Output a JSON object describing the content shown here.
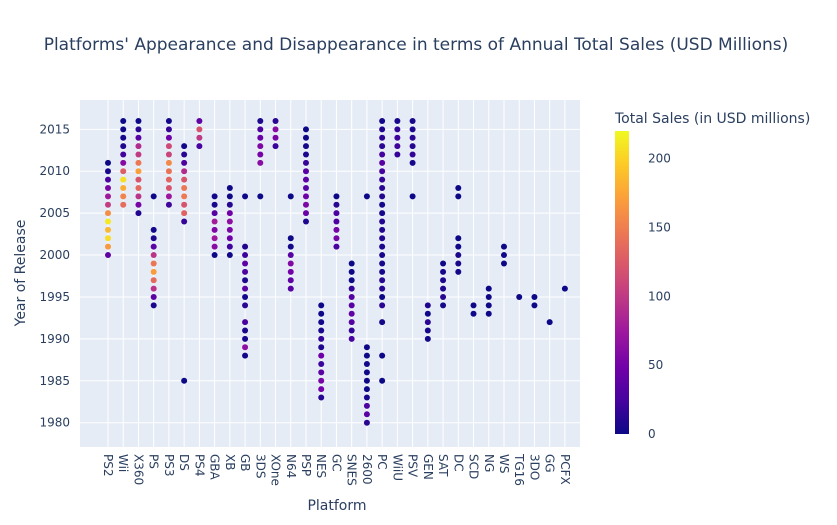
{
  "chart_data": {
    "type": "scatter",
    "title": "Platforms' Appearance and Disappearance in terms of Annual Total Sales (USD Millions)",
    "x_label": "Platform",
    "y_label": "Year of Release",
    "colorbar_title": "Total Sales (in USD millions)",
    "colorscale": [
      "#0d0887",
      "#46039f",
      "#7201a8",
      "#9c179e",
      "#bd3786",
      "#d8576b",
      "#ed7953",
      "#fb9f3a",
      "#fdca26",
      "#f0f921"
    ],
    "color_range": [
      0,
      220
    ],
    "colorbar_ticks": [
      0,
      50,
      100,
      150,
      200
    ],
    "ylim": [
      1977.1,
      2018.5
    ],
    "yticks": [
      1980,
      1985,
      1990,
      1995,
      2000,
      2005,
      2010,
      2015
    ],
    "grid": true,
    "groups": [
      {
        "platform": "PS2",
        "years": [
          2000,
          2001,
          2002,
          2003,
          2004,
          2005,
          2006,
          2007,
          2008,
          2009,
          2010,
          2011
        ],
        "sales": [
          39.1,
          166.4,
          205.4,
          184.3,
          211.8,
          160.7,
          103.4,
          75.9,
          53.9,
          26.4,
          5.6,
          0.5
        ]
      },
      {
        "platform": "Wii",
        "years": [
          2006,
          2007,
          2008,
          2009,
          2010,
          2011,
          2012,
          2013,
          2014,
          2015,
          2016
        ],
        "sales": [
          137.9,
          153.4,
          177.7,
          206.9,
          127.6,
          59.8,
          22.8,
          9.4,
          4.4,
          1.6,
          0.2
        ]
      },
      {
        "platform": "X360",
        "years": [
          2005,
          2006,
          2007,
          2008,
          2009,
          2010,
          2011,
          2012,
          2013,
          2014,
          2015,
          2016
        ],
        "sales": [
          8.3,
          51.9,
          95.8,
          136.1,
          120.8,
          171.1,
          145.1,
          100.9,
          89.7,
          35.1,
          12.0,
          0.8
        ]
      },
      {
        "platform": "PS",
        "years": [
          1994,
          1995,
          1996,
          1997,
          1998,
          1999,
          2000,
          2001,
          2002,
          2003,
          2007
        ],
        "sales": [
          6.0,
          35.9,
          94.7,
          136.1,
          169.5,
          144.5,
          96.3,
          35.5,
          6.7,
          2.1,
          0.02
        ]
      },
      {
        "platform": "PS3",
        "years": [
          2006,
          2007,
          2008,
          2009,
          2010,
          2011,
          2012,
          2013,
          2014,
          2015,
          2016
        ],
        "sales": [
          21.1,
          73.8,
          119.7,
          132.3,
          142.1,
          157.0,
          108.3,
          113.3,
          47.8,
          16.8,
          3.6
        ]
      },
      {
        "platform": "DS",
        "years": [
          1985,
          2004,
          2005,
          2006,
          2007,
          2008,
          2009,
          2010,
          2011,
          2012,
          2013
        ],
        "sales": [
          0.02,
          17.5,
          130.5,
          121.0,
          147.2,
          145.4,
          121.0,
          87.8,
          27.8,
          11.7,
          1.96
        ]
      },
      {
        "platform": "PS4",
        "years": [
          2013,
          2014,
          2015,
          2016
        ],
        "sales": [
          26.0,
          100.0,
          118.9,
          39.0
        ]
      },
      {
        "platform": "GBA",
        "years": [
          2000,
          2001,
          2002,
          2003,
          2004,
          2005,
          2006,
          2007
        ],
        "sales": [
          0.07,
          61.6,
          74.2,
          56.7,
          78.0,
          33.9,
          5.3,
          3.4
        ]
      },
      {
        "platform": "XB",
        "years": [
          2000,
          2001,
          2002,
          2003,
          2004,
          2005,
          2006,
          2007,
          2008
        ],
        "sales": [
          0.99,
          22.3,
          48.0,
          55.0,
          65.4,
          49.1,
          10.0,
          0.55,
          0.18
        ]
      },
      {
        "platform": "GB",
        "years": [
          1988,
          1989,
          1990,
          1991,
          1992,
          1994,
          1995,
          1996,
          1997,
          1998,
          1999,
          2000,
          2001,
          2007
        ],
        "sales": [
          1.4,
          64.9,
          4.9,
          5.6,
          25.5,
          12.2,
          3.6,
          36.0,
          6.4,
          26.9,
          38.0,
          19.8,
          9.2,
          0.1
        ]
      },
      {
        "platform": "3DS",
        "years": [
          2007,
          2011,
          2012,
          2013,
          2014,
          2015,
          2016
        ],
        "sales": [
          0.02,
          62.5,
          51.1,
          56.6,
          43.1,
          27.8,
          6.6
        ]
      },
      {
        "platform": "XOne",
        "years": [
          2013,
          2014,
          2015,
          2016
        ],
        "sales": [
          19.0,
          54.1,
          60.1,
          12.4
        ]
      },
      {
        "platform": "N64",
        "years": [
          1996,
          1997,
          1998,
          1999,
          2000,
          2001,
          2002,
          2007
        ],
        "sales": [
          34.1,
          39.5,
          49.2,
          57.9,
          33.9,
          3.3,
          0.08,
          0.02
        ]
      },
      {
        "platform": "PSP",
        "years": [
          2004,
          2005,
          2006,
          2007,
          2008,
          2009,
          2010,
          2011,
          2012,
          2013,
          2014,
          2015
        ],
        "sales": [
          7.1,
          43.8,
          55.3,
          46.9,
          34.6,
          37.8,
          35.0,
          17.8,
          7.7,
          3.1,
          0.24,
          0.12
        ]
      },
      {
        "platform": "NES",
        "years": [
          1983,
          1984,
          1985,
          1986,
          1987,
          1988,
          1989,
          1990,
          1991,
          1992,
          1993,
          1994
        ],
        "sales": [
          11.0,
          50.1,
          53.4,
          36.4,
          19.8,
          45.0,
          7.9,
          15.7,
          6.1,
          2.0,
          0.05,
          0.1
        ]
      },
      {
        "platform": "GC",
        "years": [
          2001,
          2002,
          2003,
          2004,
          2005,
          2006,
          2007
        ],
        "sales": [
          26.3,
          51.8,
          50.6,
          28.8,
          27.6,
          11.3,
          0.27
        ]
      },
      {
        "platform": "SNES",
        "years": [
          1990,
          1991,
          1992,
          1993,
          1994,
          1995,
          1996,
          1997,
          1998,
          1999
        ],
        "sales": [
          26.2,
          16.2,
          32.9,
          40.0,
          35.1,
          32.2,
          15.9,
          0.99,
          0.22,
          0.09
        ]
      },
      {
        "platform": "2600",
        "years": [
          1980,
          1981,
          1982,
          1983,
          1984,
          1985,
          1986,
          1987,
          1988,
          1989,
          2007
        ],
        "sales": [
          11.4,
          35.7,
          28.9,
          5.8,
          0.27,
          0.45,
          0.67,
          1.94,
          0.74,
          0.63,
          0.02
        ]
      },
      {
        "platform": "PC",
        "years": [
          1985,
          1988,
          1992,
          1994,
          1995,
          1996,
          1997,
          1998,
          1999,
          2000,
          2001,
          2002,
          2003,
          2004,
          2005,
          2006,
          2007,
          2008,
          2009,
          2010,
          2011,
          2012,
          2013,
          2014,
          2015,
          2016
        ],
        "sales": [
          0.04,
          0.03,
          3.0,
          12.9,
          0.08,
          10.6,
          11.3,
          3.3,
          4.7,
          4.7,
          5.5,
          8.6,
          8.4,
          10.4,
          4.4,
          2.9,
          9.4,
          12.4,
          17.0,
          24.9,
          35.2,
          23.5,
          12.7,
          13.6,
          8.1,
          2.6
        ]
      },
      {
        "platform": "WiiU",
        "years": [
          2012,
          2013,
          2014,
          2015,
          2016
        ],
        "sales": [
          17.6,
          21.8,
          22.0,
          16.4,
          4.6
        ]
      },
      {
        "platform": "PSV",
        "years": [
          2007,
          2011,
          2012,
          2013,
          2014,
          2015,
          2016
        ],
        "sales": [
          0.02,
          4.6,
          16.2,
          10.6,
          12.2,
          6.9,
          4.3
        ]
      },
      {
        "platform": "GEN",
        "years": [
          1990,
          1991,
          1992,
          1993,
          1994
        ],
        "sales": [
          2.6,
          4.3,
          12.6,
          0.65,
          8.1
        ]
      },
      {
        "platform": "SAT",
        "years": [
          1994,
          1995,
          1996,
          1997,
          1998,
          1999
        ],
        "sales": [
          3.7,
          11.6,
          7.7,
          6.8,
          3.8,
          0.09
        ]
      },
      {
        "platform": "DC",
        "years": [
          1998,
          1999,
          2000,
          2001,
          2002,
          2007,
          2008
        ],
        "sales": [
          3.4,
          5.2,
          6.0,
          1.07,
          0.29,
          0.02,
          0.04
        ]
      },
      {
        "platform": "SCD",
        "years": [
          1993,
          1994
        ],
        "sales": [
          1.5,
          0.36
        ]
      },
      {
        "platform": "NG",
        "years": [
          1993,
          1994,
          1995,
          1996
        ],
        "sales": [
          0.21,
          0.8,
          0.33,
          0.1
        ]
      },
      {
        "platform": "WS",
        "years": [
          1999,
          2000,
          2001
        ],
        "sales": [
          0.46,
          0.68,
          0.28
        ]
      },
      {
        "platform": "TG16",
        "years": [
          1995
        ],
        "sales": [
          0.16
        ]
      },
      {
        "platform": "3DO",
        "years": [
          1994,
          1995
        ],
        "sales": [
          0.02,
          0.08
        ]
      },
      {
        "platform": "GG",
        "years": [
          1992
        ],
        "sales": [
          0.04
        ]
      },
      {
        "platform": "PCFX",
        "years": [
          1996
        ],
        "sales": [
          0.03
        ]
      }
    ]
  }
}
